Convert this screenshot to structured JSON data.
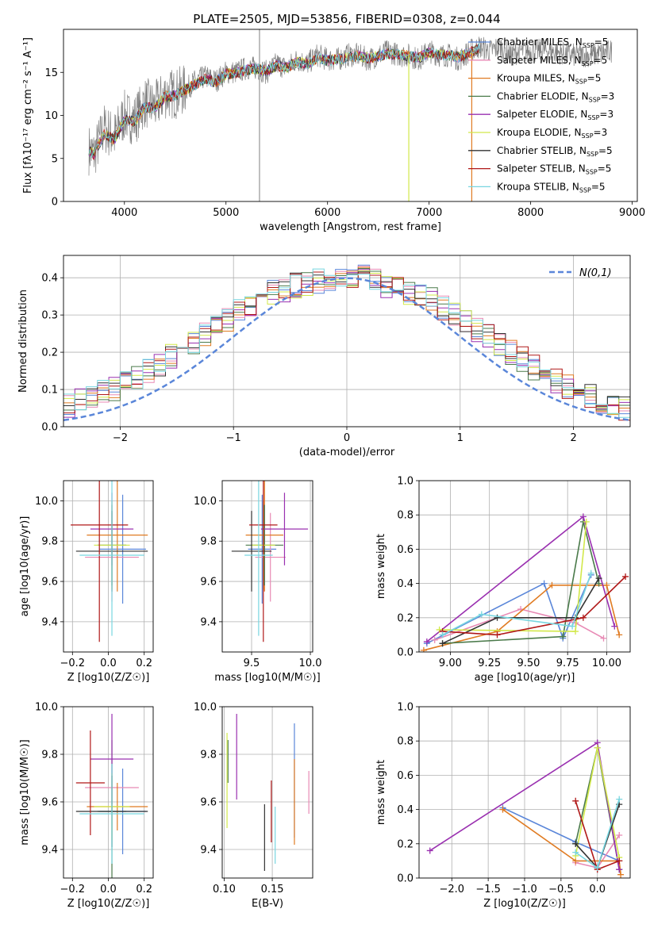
{
  "figure_title": "PLATE=2505, MJD=53856, FIBERID=0308, z=0.044",
  "colors": {
    "Chabrier MILES": "#5a86d9",
    "Salpeter MILES": "#e88ab5",
    "Kroupa MILES": "#e07b22",
    "Chabrier ELODIE": "#4a7a4a",
    "Salpeter ELODIE": "#9a30b0",
    "Kroupa ELODIE": "#d2e84a",
    "Chabrier STELIB": "#333333",
    "Salpeter STELIB": "#b01818",
    "Kroupa STELIB": "#78d6e0",
    "data": "#808080",
    "normal": "#5a86d9"
  },
  "chart_data": [
    {
      "type": "line",
      "title": "PLATE=2505, MJD=53856, FIBERID=0308, z=0.044",
      "xlabel": "wavelength [Angstrom, rest frame]",
      "ylabel": "Flux [fλ10⁻¹⁷ erg cm⁻² s⁻¹ A⁻¹]",
      "xlim": [
        3400,
        9050
      ],
      "ylim": [
        0,
        20
      ],
      "xticks": [
        "4000",
        "5000",
        "6000",
        "7000",
        "8000",
        "9000"
      ],
      "yticks": [
        "0",
        "5",
        "10",
        "15"
      ],
      "legend": [
        {
          "label": "Chabrier MILES, N",
          "sub": "SSP",
          "suffix": "=5"
        },
        {
          "label": "Salpeter MILES, N",
          "sub": "SSP",
          "suffix": "=5"
        },
        {
          "label": "Kroupa MILES, N",
          "sub": "SSP",
          "suffix": "=5"
        },
        {
          "label": "Chabrier ELODIE, N",
          "sub": "SSP",
          "suffix": "=3"
        },
        {
          "label": "Salpeter ELODIE, N",
          "sub": "SSP",
          "suffix": "=3"
        },
        {
          "label": "Kroupa ELODIE, N",
          "sub": "SSP",
          "suffix": "=3"
        },
        {
          "label": "Chabrier STELIB, N",
          "sub": "SSP",
          "suffix": "=5"
        },
        {
          "label": "Salpeter STELIB, N",
          "sub": "SSP",
          "suffix": "=5"
        },
        {
          "label": "Kroupa STELIB, N",
          "sub": "SSP",
          "suffix": "=5"
        }
      ],
      "series": [
        {
          "name": "Data",
          "x": [
            3650,
            3700,
            3800,
            3900,
            4000,
            4100,
            4200,
            4300,
            4400,
            4500,
            4600,
            4700,
            4800,
            4900,
            5000,
            5100,
            5200,
            5300,
            5400,
            5500,
            5600,
            5700,
            5800,
            5900,
            6000,
            6100,
            6200,
            6300,
            6400,
            6500,
            6600,
            6700,
            6800,
            6900,
            7000,
            7100,
            7200,
            7300,
            7400,
            7500,
            7600,
            7700,
            7800,
            7900,
            8000,
            8200,
            8400,
            8600,
            8800
          ],
          "y": [
            6.0,
            5.5,
            8.5,
            7.5,
            10.0,
            9.5,
            11.5,
            11.0,
            12.5,
            12.5,
            13.0,
            14.0,
            14.5,
            14.0,
            15.0,
            15.0,
            15.5,
            15.5,
            15.0,
            16.0,
            15.5,
            16.5,
            16.0,
            17.0,
            16.5,
            16.5,
            17.0,
            17.0,
            16.5,
            17.0,
            17.5,
            17.0,
            17.0,
            16.5,
            17.5,
            17.0,
            17.0,
            16.5,
            17.5,
            18.0,
            17.5,
            18.0,
            17.0,
            17.5,
            17.5,
            17.5,
            17.0,
            17.0,
            17.5
          ]
        },
        {
          "name": "Model",
          "x": [
            3650,
            3700,
            3800,
            3900,
            4000,
            4100,
            4200,
            4300,
            4400,
            4500,
            4600,
            4700,
            4800,
            4900,
            5000,
            5100,
            5200,
            5300,
            5400,
            5500,
            5600,
            5700,
            5800,
            5900,
            6000,
            6100,
            6200,
            6300,
            6400,
            6500,
            6600,
            6700,
            6800,
            6900,
            7000,
            7100,
            7200,
            7300,
            7400,
            7500
          ],
          "y": [
            6.0,
            5.5,
            7.8,
            7.2,
            9.5,
            9.3,
            11.0,
            10.8,
            12.2,
            12.3,
            13.0,
            13.6,
            14.2,
            13.9,
            14.8,
            14.9,
            15.3,
            15.4,
            15.2,
            15.8,
            15.6,
            16.2,
            16.0,
            16.6,
            16.4,
            16.5,
            16.8,
            16.9,
            16.6,
            16.9,
            17.2,
            17.0,
            16.9,
            16.7,
            17.3,
            17.0,
            17.0,
            16.8,
            17.3,
            17.8
          ]
        }
      ]
    },
    {
      "type": "line",
      "xlabel": "(data-model)/error",
      "ylabel": "Normed distribution",
      "xlim": [
        -2.5,
        2.5
      ],
      "ylim": [
        0,
        0.46
      ],
      "xticks": [
        "−2",
        "−1",
        "0",
        "1",
        "2"
      ],
      "yticks": [
        "0.0",
        "0.1",
        "0.2",
        "0.3",
        "0.4"
      ],
      "legend": [
        {
          "label": "N(0,1)"
        }
      ],
      "bin_width": 0.1,
      "hist_base": [
        0.02,
        0.03,
        0.04,
        0.05,
        0.05,
        0.06,
        0.07,
        0.08,
        0.09,
        0.1,
        0.12,
        0.13,
        0.15,
        0.17,
        0.19,
        0.21,
        0.23,
        0.25,
        0.27,
        0.29,
        0.31,
        0.33,
        0.35,
        0.36,
        0.37,
        0.38,
        0.38,
        0.39,
        0.4,
        0.4,
        0.39,
        0.4,
        0.39,
        0.38,
        0.37,
        0.36,
        0.35,
        0.34,
        0.32,
        0.3,
        0.28,
        0.26,
        0.24,
        0.22,
        0.2,
        0.18,
        0.16,
        0.14,
        0.12,
        0.11,
        0.09,
        0.08,
        0.07,
        0.06,
        0.05,
        0.04,
        0.04,
        0.03,
        0.03,
        0.02
      ]
    },
    {
      "type": "scatter",
      "xlabel": "Z [log10(Z/Z☉)]",
      "ylabel": "age  [log10(age/yr)]",
      "xlim": [
        -0.25,
        0.25
      ],
      "ylim": [
        9.25,
        10.1
      ],
      "xticks": [
        "−0.2",
        "0.0",
        "0.2"
      ],
      "yticks": [
        "9.4",
        "9.6",
        "9.8",
        "10.0"
      ],
      "points": [
        {
          "x": 0.08,
          "xerr": 0.13,
          "y": 9.76,
          "yerr": 0.27
        },
        {
          "x": 0.02,
          "xerr": 0.15,
          "y": 9.72,
          "yerr": 0.22
        },
        {
          "x": 0.05,
          "xerr": 0.17,
          "y": 9.83,
          "yerr": 0.28
        },
        {
          "x": 0.02,
          "xerr": 0.08,
          "y": 9.78,
          "yerr": 0.2
        },
        {
          "x": 0.02,
          "xerr": 0.12,
          "y": 9.86,
          "yerr": 0.18
        },
        {
          "x": 0.02,
          "xerr": 0.1,
          "y": 9.78,
          "yerr": 0.22
        },
        {
          "x": 0.02,
          "xerr": 0.2,
          "y": 9.75,
          "yerr": 0.2
        },
        {
          "x": -0.05,
          "xerr": 0.16,
          "y": 9.88,
          "yerr": 0.58
        },
        {
          "x": 0.02,
          "xerr": 0.18,
          "y": 9.73,
          "yerr": 0.4
        }
      ]
    },
    {
      "type": "scatter",
      "xlabel": "mass [log10(M/M☉)]",
      "xlim": [
        9.25,
        10.02
      ],
      "ylim": [
        9.25,
        10.1
      ],
      "xticks": [
        "9.5",
        "10.0"
      ],
      "yticks": [
        "9.4",
        "9.6",
        "9.8",
        "10.0"
      ],
      "points": [
        {
          "x": 9.59,
          "xerr": 0.12,
          "y": 9.76,
          "yerr": 0.27
        },
        {
          "x": 9.66,
          "xerr": 0.13,
          "y": 9.72,
          "yerr": 0.22
        },
        {
          "x": 9.61,
          "xerr": 0.16,
          "y": 9.83,
          "yerr": 0.28
        },
        {
          "x": 9.61,
          "xerr": 0.16,
          "y": 9.78,
          "yerr": 0.2
        },
        {
          "x": 9.78,
          "xerr": 0.2,
          "y": 9.86,
          "yerr": 0.18
        },
        {
          "x": 9.6,
          "xerr": 0.1,
          "y": 9.78,
          "yerr": 0.22
        },
        {
          "x": 9.5,
          "xerr": 0.17,
          "y": 9.75,
          "yerr": 0.2
        },
        {
          "x": 9.6,
          "xerr": 0.12,
          "y": 9.88,
          "yerr": 0.58
        },
        {
          "x": 9.56,
          "xerr": 0.12,
          "y": 9.73,
          "yerr": 0.4
        }
      ]
    },
    {
      "type": "line",
      "xlabel": "age  [log10(age/yr)]",
      "ylabel": "mass weight",
      "xlim": [
        8.8,
        10.15
      ],
      "ylim": [
        0,
        1.0
      ],
      "xticks": [
        "9.00",
        "9.25",
        "9.50",
        "9.75",
        "10.00"
      ],
      "yticks": [
        "0.0",
        "0.2",
        "0.4",
        "0.6",
        "0.8",
        "1.0"
      ],
      "series": [
        {
          "name": "Chabrier MILES",
          "x": [
            8.85,
            9.6,
            9.72,
            9.9
          ],
          "y": [
            0.05,
            0.4,
            0.08,
            0.45
          ]
        },
        {
          "name": "Salpeter MILES",
          "x": [
            8.9,
            9.45,
            9.8,
            9.98
          ],
          "y": [
            0.07,
            0.25,
            0.17,
            0.08
          ]
        },
        {
          "name": "Kroupa MILES",
          "x": [
            8.83,
            9.3,
            9.65,
            10.0,
            10.08
          ],
          "y": [
            0.01,
            0.12,
            0.39,
            0.39,
            0.1
          ]
        },
        {
          "name": "Chabrier ELODIE",
          "x": [
            8.95,
            9.72,
            9.85,
            9.95
          ],
          "y": [
            0.05,
            0.09,
            0.76,
            0.4
          ]
        },
        {
          "name": "Salpeter ELODIE",
          "x": [
            8.85,
            9.85,
            10.05
          ],
          "y": [
            0.06,
            0.79,
            0.15
          ]
        },
        {
          "name": "Kroupa ELODIE",
          "x": [
            8.93,
            9.8,
            9.87
          ],
          "y": [
            0.13,
            0.12,
            0.76
          ]
        },
        {
          "name": "Chabrier STELIB",
          "x": [
            8.95,
            9.3,
            9.8,
            9.95
          ],
          "y": [
            0.05,
            0.2,
            0.2,
            0.43
          ]
        },
        {
          "name": "Salpeter STELIB",
          "x": [
            8.95,
            9.3,
            9.85,
            10.12
          ],
          "y": [
            0.12,
            0.1,
            0.2,
            0.44
          ]
        },
        {
          "name": "Kroupa STELIB",
          "x": [
            8.95,
            9.2,
            9.78,
            9.9
          ],
          "y": [
            0.1,
            0.22,
            0.15,
            0.46
          ]
        }
      ]
    },
    {
      "type": "scatter",
      "xlabel": "Z [log10(Z/Z☉)]",
      "ylabel": "mass [log10(M/M☉)]",
      "xlim": [
        -0.25,
        0.25
      ],
      "ylim": [
        9.28,
        10.0
      ],
      "xticks": [
        "−0.2",
        "0.0",
        "0.2"
      ],
      "yticks": [
        "9.4",
        "9.6",
        "9.8",
        "10.0"
      ],
      "points": [
        {
          "x": 0.08,
          "xerr": 0.13,
          "y": 9.56,
          "yerr": 0.18
        },
        {
          "x": 0.02,
          "xerr": 0.15,
          "y": 9.66,
          "yerr": 0.1
        },
        {
          "x": 0.05,
          "xerr": 0.17,
          "y": 9.58,
          "yerr": 0.1
        },
        {
          "x": 0.02,
          "xerr": 0.08,
          "y": 9.56,
          "yerr": 0.3
        },
        {
          "x": 0.02,
          "xerr": 0.12,
          "y": 9.78,
          "yerr": 0.19
        },
        {
          "x": 0.02,
          "xerr": 0.1,
          "y": 9.58,
          "yerr": 0.14
        },
        {
          "x": 0.02,
          "xerr": 0.2,
          "y": 9.56,
          "yerr": 0.15
        },
        {
          "x": -0.1,
          "xerr": 0.08,
          "y": 9.68,
          "yerr": 0.22
        },
        {
          "x": 0.02,
          "xerr": 0.18,
          "y": 9.55,
          "yerr": 0.21
        }
      ]
    },
    {
      "type": "scatter",
      "xlabel": "E(B-V)",
      "xlim": [
        0.098,
        0.192
      ],
      "ylim": [
        9.28,
        10.0
      ],
      "xticks": [
        "0.10",
        "0.15"
      ],
      "yticks": [
        "9.4",
        "9.6",
        "9.8",
        "10.0"
      ],
      "points": [
        {
          "x": 0.173,
          "y": 9.69,
          "yerr": 0.24
        },
        {
          "x": 0.188,
          "y": 9.64,
          "yerr": 0.09
        },
        {
          "x": 0.173,
          "y": 9.6,
          "yerr": 0.18
        },
        {
          "x": 0.104,
          "y": 9.77,
          "yerr": 0.09
        },
        {
          "x": 0.113,
          "y": 9.79,
          "yerr": 0.18
        },
        {
          "x": 0.103,
          "y": 9.69,
          "yerr": 0.2
        },
        {
          "x": 0.142,
          "y": 9.45,
          "yerr": 0.14
        },
        {
          "x": 0.149,
          "y": 9.56,
          "yerr": 0.13
        },
        {
          "x": 0.153,
          "y": 9.46,
          "yerr": 0.12
        }
      ]
    },
    {
      "type": "line",
      "xlabel": "Z [log10(Z/Z☉)]",
      "ylabel": "mass weight",
      "xlim": [
        -2.45,
        0.45
      ],
      "ylim": [
        0,
        1.0
      ],
      "xticks": [
        "−2.0",
        "−1.5",
        "−1.0",
        "−0.5",
        "0.0"
      ],
      "yticks": [
        "0.0",
        "0.2",
        "0.4",
        "0.6",
        "0.8",
        "1.0"
      ],
      "series": [
        {
          "name": "Chabrier MILES",
          "x": [
            -1.3,
            -0.3,
            0.3
          ],
          "y": [
            0.41,
            0.21,
            0.1
          ]
        },
        {
          "name": "Salpeter MILES",
          "x": [
            -0.3,
            0.0,
            0.3
          ],
          "y": [
            0.09,
            0.06,
            0.25
          ]
        },
        {
          "name": "Kroupa MILES",
          "x": [
            -1.3,
            -0.3,
            0.3,
            0.32
          ],
          "y": [
            0.4,
            0.1,
            0.1,
            0.02
          ]
        },
        {
          "name": "Chabrier ELODIE",
          "x": [
            -0.3,
            0.0,
            0.3
          ],
          "y": [
            0.2,
            0.76,
            0.05
          ]
        },
        {
          "name": "Salpeter ELODIE",
          "x": [
            -2.3,
            0.0,
            0.3
          ],
          "y": [
            0.16,
            0.79,
            0.05
          ]
        },
        {
          "name": "Kroupa ELODIE",
          "x": [
            -0.3,
            0.0,
            0.3
          ],
          "y": [
            0.13,
            0.76,
            0.12
          ]
        },
        {
          "name": "Chabrier STELIB",
          "x": [
            -0.3,
            0.0,
            0.3
          ],
          "y": [
            0.2,
            0.06,
            0.43
          ]
        },
        {
          "name": "Salpeter STELIB",
          "x": [
            -0.3,
            0.0,
            0.3
          ],
          "y": [
            0.45,
            0.05,
            0.1
          ]
        },
        {
          "name": "Kroupa STELIB",
          "x": [
            -0.3,
            0.0,
            0.3
          ],
          "y": [
            0.15,
            0.06,
            0.46
          ]
        }
      ]
    }
  ]
}
